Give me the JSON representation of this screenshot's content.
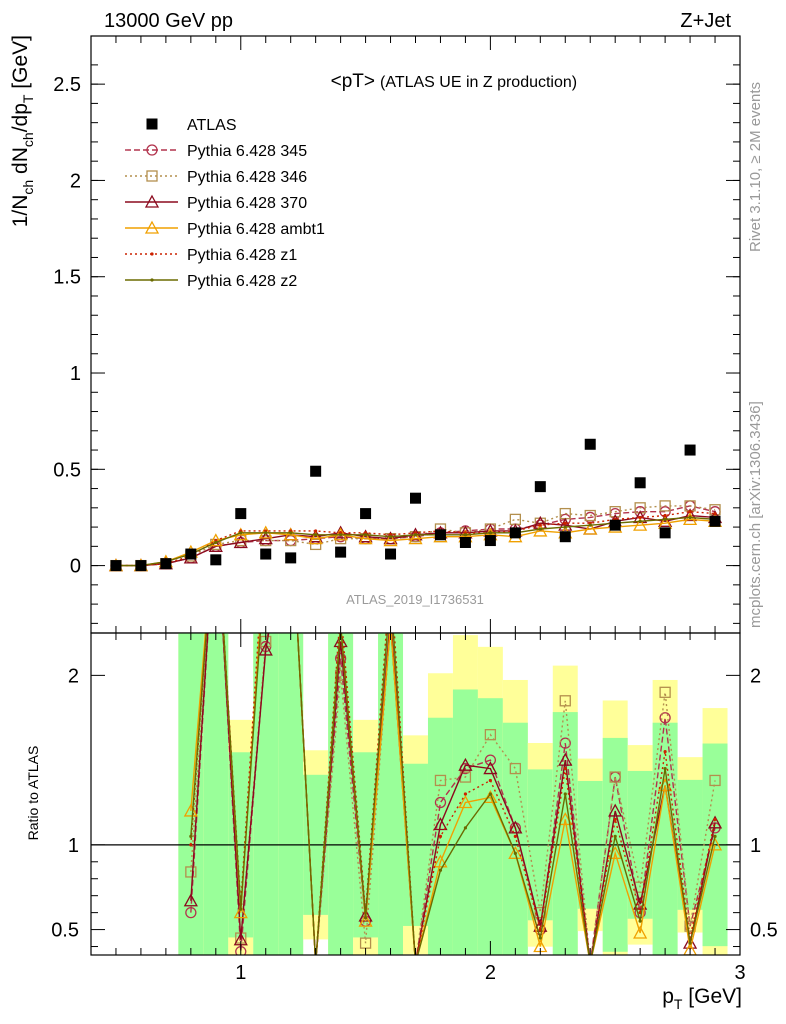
{
  "header": {
    "left": "13000 GeV pp",
    "right": "Z+Jet"
  },
  "side_labels": {
    "rivet": "Rivet 3.1.10, ≥ 2M events",
    "mcplots": "mcplots.cern.ch [arXiv:1306.3436]"
  },
  "analysis_id": "ATLAS_2019_I1736531",
  "colors": {
    "data": "#000000",
    "ratio_ref_line": "#000000",
    "band_inner": "#99ff99",
    "band_outer": "#ffff99"
  },
  "chart_data": [
    {
      "type": "scatter",
      "title_main": "<pT>",
      "title_sub": "(ATLAS UE in Z production)",
      "ylabel": "1/N_ch dN_ch/dp_T [GeV]",
      "xlim": [
        0.4,
        3.0
      ],
      "ylim": [
        -0.35,
        2.75
      ],
      "yticks": [
        "0",
        "0.5",
        "1",
        "1.5",
        "2",
        "2.5"
      ],
      "x": [
        0.5,
        0.6,
        0.7,
        0.8,
        0.9,
        1.0,
        1.1,
        1.2,
        1.3,
        1.4,
        1.5,
        1.6,
        1.7,
        1.8,
        1.9,
        2.0,
        2.1,
        2.2,
        2.3,
        2.4,
        2.5,
        2.6,
        2.7,
        2.8,
        2.9
      ],
      "series": [
        {
          "name": "ATLAS",
          "color": "#000000",
          "marker": "square-filled",
          "line": "none",
          "values": [
            0.0,
            0.0,
            0.01,
            0.06,
            0.03,
            0.27,
            0.06,
            0.04,
            0.49,
            0.07,
            0.27,
            0.06,
            0.35,
            0.16,
            0.12,
            0.13,
            0.17,
            0.41,
            0.15,
            0.63,
            0.21,
            0.43,
            0.17,
            0.6,
            0.23
          ]
        },
        {
          "name": "Pythia 6.428 345",
          "color": "#b2334d",
          "marker": "circle-open",
          "line": "dashed",
          "values": [
            0.0,
            0.0,
            0.01,
            0.04,
            0.1,
            0.12,
            0.13,
            0.13,
            0.14,
            0.15,
            0.14,
            0.14,
            0.15,
            0.17,
            0.18,
            0.19,
            0.19,
            0.21,
            0.24,
            0.25,
            0.27,
            0.28,
            0.28,
            0.31,
            0.28
          ]
        },
        {
          "name": "Pythia 6.428 346",
          "color": "#b38f4d",
          "marker": "square-open",
          "line": "dotted",
          "values": [
            0.0,
            0.0,
            0.01,
            0.05,
            0.11,
            0.13,
            0.13,
            0.13,
            0.11,
            0.14,
            0.14,
            0.14,
            0.15,
            0.19,
            0.17,
            0.19,
            0.24,
            0.22,
            0.27,
            0.26,
            0.28,
            0.3,
            0.31,
            0.31,
            0.29
          ]
        },
        {
          "name": "Pythia 6.428 370",
          "color": "#8b0a1e",
          "marker": "triangle-open",
          "line": "solid",
          "values": [
            0.0,
            0.0,
            0.01,
            0.04,
            0.1,
            0.12,
            0.14,
            0.16,
            0.15,
            0.17,
            0.15,
            0.14,
            0.16,
            0.17,
            0.17,
            0.18,
            0.18,
            0.22,
            0.21,
            0.19,
            0.23,
            0.25,
            0.23,
            0.26,
            0.25
          ]
        },
        {
          "name": "Pythia 6.428 ambt1",
          "color": "#f0a000",
          "marker": "triangle-open",
          "line": "solid",
          "values": [
            0.0,
            0.0,
            0.02,
            0.07,
            0.13,
            0.16,
            0.17,
            0.16,
            0.14,
            0.16,
            0.14,
            0.13,
            0.14,
            0.15,
            0.15,
            0.16,
            0.15,
            0.18,
            0.17,
            0.19,
            0.2,
            0.21,
            0.22,
            0.24,
            0.23
          ]
        },
        {
          "name": "Pythia 6.428 z1",
          "color": "#cc2200",
          "marker": "dot",
          "line": "dotted",
          "values": [
            0.0,
            0.0,
            0.01,
            0.05,
            0.13,
            0.18,
            0.18,
            0.18,
            0.18,
            0.17,
            0.17,
            0.16,
            0.17,
            0.18,
            0.17,
            0.17,
            0.18,
            0.21,
            0.22,
            0.22,
            0.24,
            0.25,
            0.26,
            0.28,
            0.27
          ]
        },
        {
          "name": "Pythia 6.428 z2",
          "color": "#6b6b00",
          "marker": "dot",
          "line": "solid",
          "values": [
            0.0,
            0.0,
            0.02,
            0.06,
            0.12,
            0.17,
            0.17,
            0.17,
            0.16,
            0.16,
            0.16,
            0.15,
            0.16,
            0.16,
            0.16,
            0.17,
            0.17,
            0.19,
            0.2,
            0.21,
            0.22,
            0.23,
            0.24,
            0.25,
            0.24
          ]
        }
      ]
    },
    {
      "type": "line",
      "ylabel": "Ratio to ATLAS",
      "xlabel": "p_T [GeV]",
      "xlim": [
        0.4,
        3.0
      ],
      "ylim": [
        0.35,
        2.25
      ],
      "xticks": [
        "1",
        "2",
        "3"
      ],
      "yticks": [
        "0.5",
        "1",
        "2"
      ],
      "reference": 1,
      "x": [
        0.8,
        0.9,
        1.0,
        1.1,
        1.2,
        1.3,
        1.4,
        1.5,
        1.6,
        1.7,
        1.8,
        1.9,
        2.0,
        2.1,
        2.2,
        2.3,
        2.4,
        2.5,
        2.6,
        2.7,
        2.8,
        2.9
      ],
      "series": [
        {
          "name": "Pythia 6.428 345",
          "values": [
            0.6,
            3.0,
            0.37,
            2.17,
            3.0,
            0.3,
            2.1,
            0.55,
            2.3,
            0.3,
            1.25,
            1.45,
            1.5,
            1.1,
            0.5,
            1.6,
            0.3,
            1.4,
            0.6,
            1.75,
            0.52,
            1.1
          ]
        },
        {
          "name": "Pythia 6.428 346",
          "values": [
            0.84,
            3.0,
            0.45,
            2.2,
            3.0,
            0.3,
            2.0,
            0.42,
            2.3,
            0.3,
            1.38,
            1.4,
            1.65,
            1.45,
            0.6,
            1.85,
            0.3,
            1.4,
            0.75,
            1.9,
            0.52,
            1.38
          ]
        },
        {
          "name": "Pythia 6.428 370",
          "values": [
            0.67,
            3.0,
            0.44,
            2.15,
            3.0,
            0.3,
            2.2,
            0.58,
            2.35,
            0.3,
            1.12,
            1.47,
            1.45,
            1.1,
            0.52,
            1.5,
            0.3,
            1.2,
            0.65,
            1.35,
            0.42,
            1.13
          ]
        },
        {
          "name": "Pythia 6.428 ambt1",
          "values": [
            1.2,
            3.0,
            0.6,
            2.8,
            3.0,
            0.3,
            2.3,
            0.55,
            2.3,
            0.3,
            0.9,
            1.25,
            1.28,
            0.95,
            0.4,
            1.15,
            0.3,
            0.95,
            0.48,
            1.35,
            0.38,
            1.0
          ]
        },
        {
          "name": "Pythia 6.428 z1",
          "values": [
            1.0,
            3.0,
            0.65,
            2.9,
            3.0,
            0.3,
            2.4,
            0.6,
            2.6,
            0.3,
            1.05,
            1.3,
            1.38,
            1.05,
            0.5,
            1.45,
            0.3,
            1.15,
            0.6,
            1.55,
            0.45,
            1.15
          ]
        },
        {
          "name": "Pythia 6.428 z2",
          "values": [
            1.05,
            3.0,
            0.62,
            2.7,
            3.0,
            0.3,
            2.3,
            0.57,
            2.5,
            0.3,
            0.85,
            1.1,
            1.3,
            0.95,
            0.45,
            1.3,
            0.3,
            1.05,
            0.55,
            1.45,
            0.42,
            1.05
          ]
        }
      ]
    }
  ]
}
